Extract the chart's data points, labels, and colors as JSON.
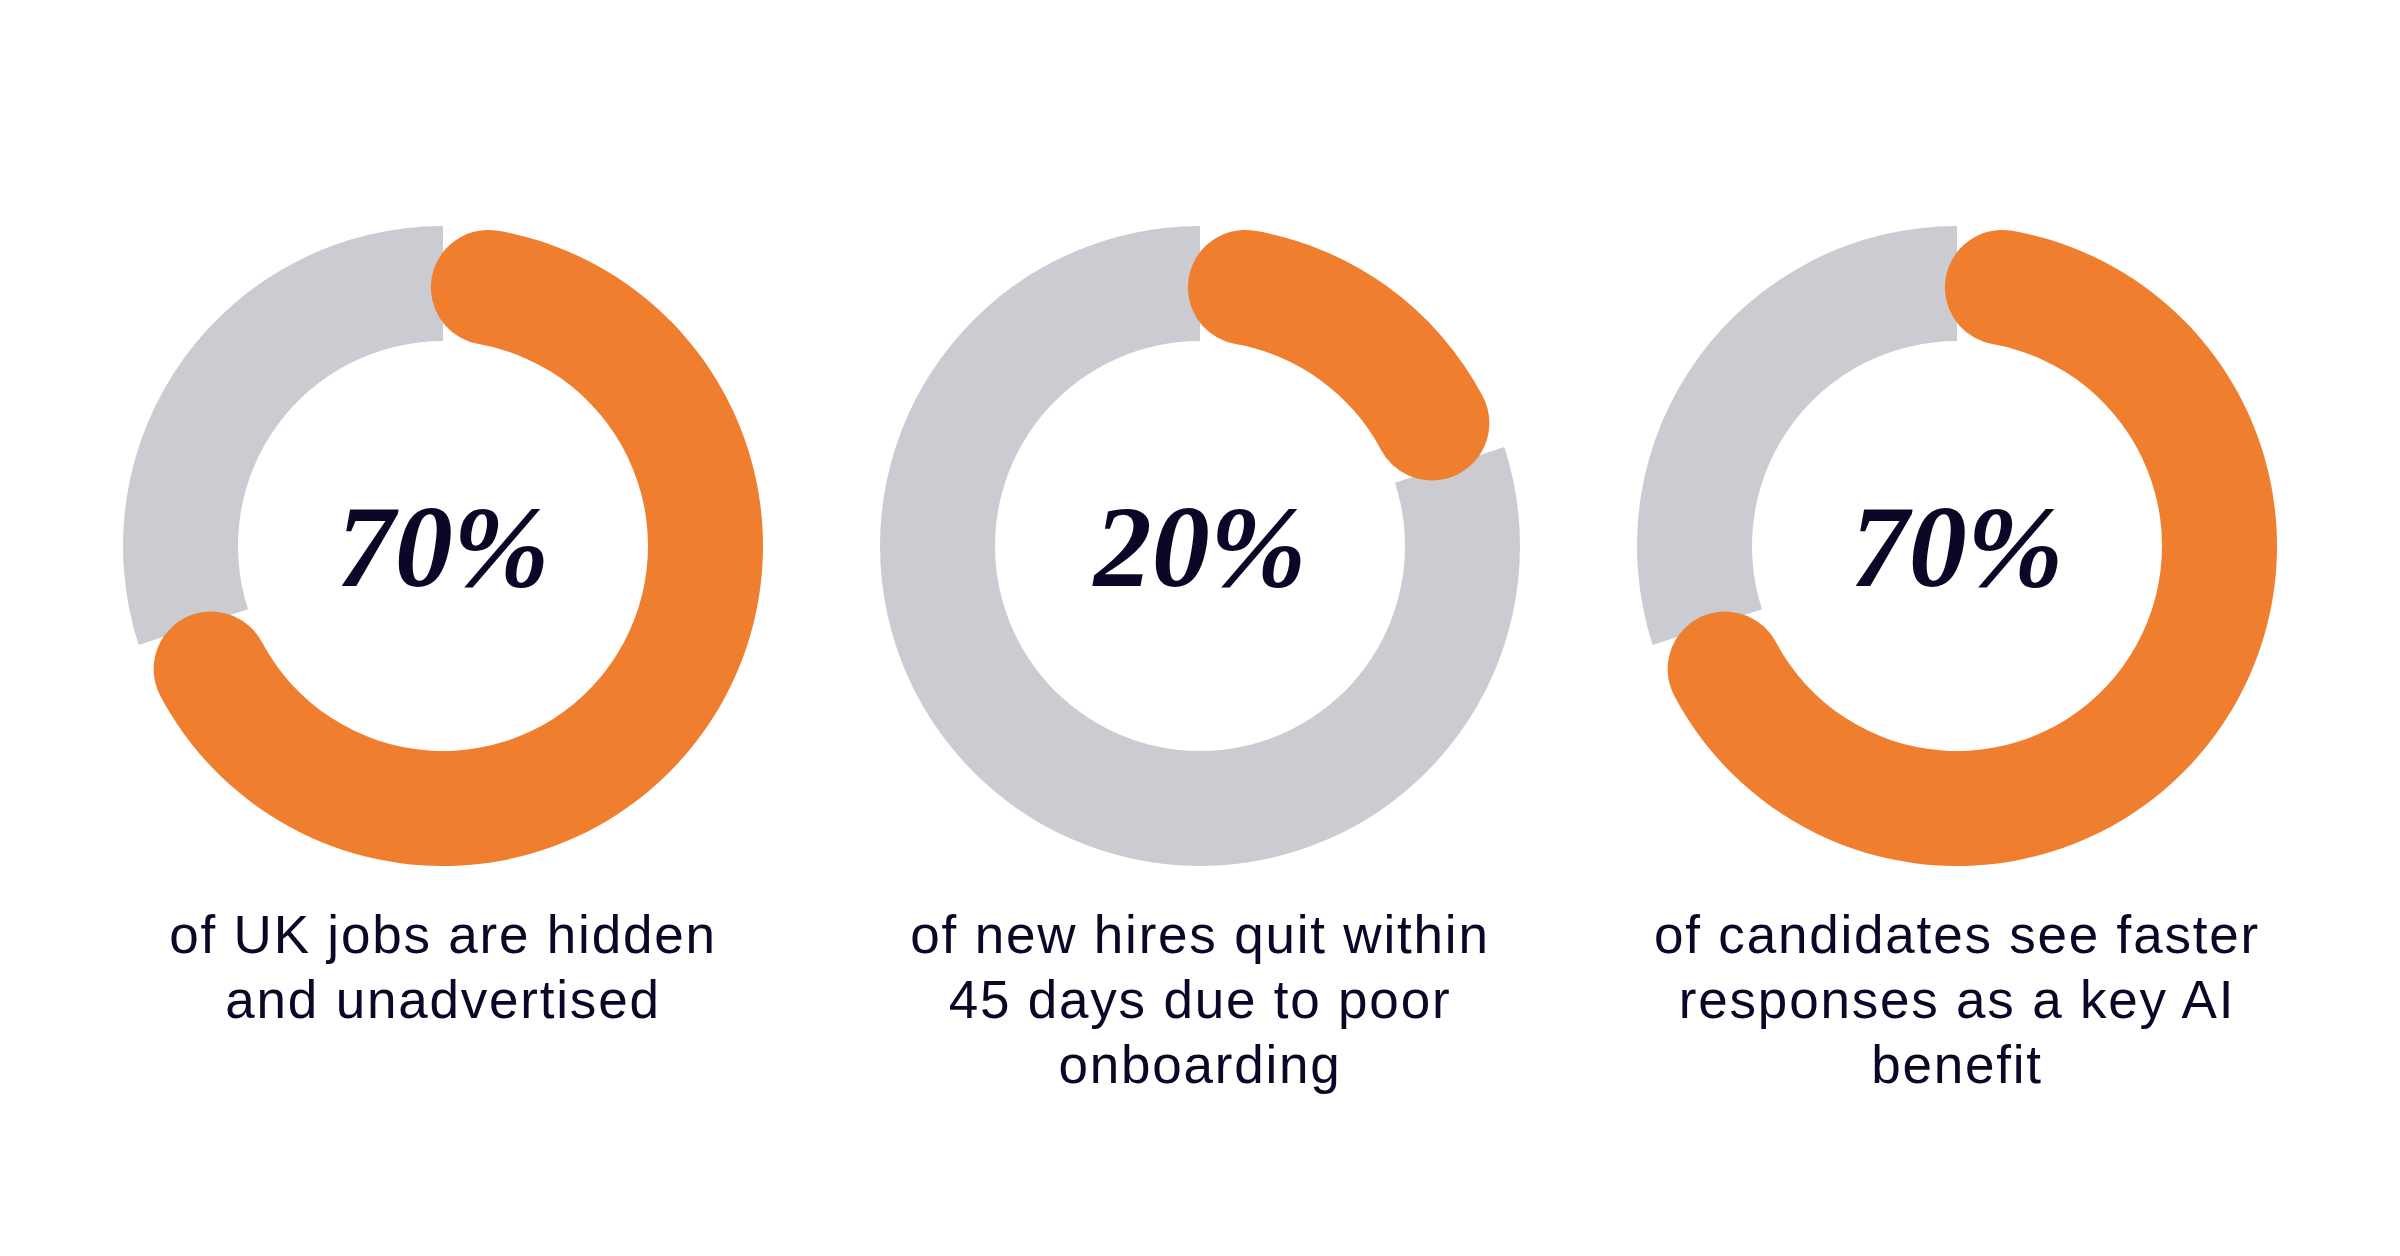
{
  "chart_data": [
    {
      "type": "donut",
      "title": "70%",
      "subtitle": "of UK jobs are hidden and unadvertised",
      "categories": [
        null,
        null
      ],
      "values": [
        70,
        30
      ],
      "colors": [
        "#ef7f2f",
        "#cbccd2"
      ]
    },
    {
      "type": "donut",
      "title": "20%",
      "subtitle": "of new hires quit within 45 days due to poor onboarding",
      "categories": [
        null,
        null
      ],
      "values": [
        20,
        80
      ],
      "colors": [
        "#ef7f2f",
        "#cbccd2"
      ]
    },
    {
      "type": "donut",
      "title": "70%",
      "subtitle": "of candidates see faster responses as a key AI benefit",
      "categories": [
        null,
        null
      ],
      "values": [
        70,
        30
      ],
      "colors": [
        "#ef7f2f",
        "#cbccd2"
      ]
    }
  ]
}
